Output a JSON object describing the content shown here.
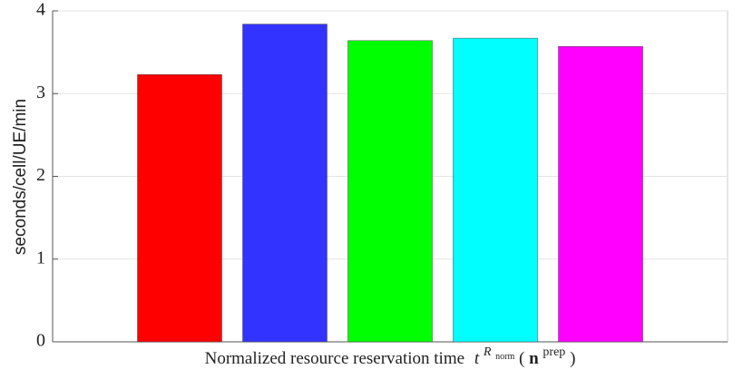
{
  "chart_data": {
    "type": "bar",
    "ylabel": "seconds/cell/UE/min",
    "xlabel_parts": [
      "Normalized resource reservation time",
      "t",
      "R",
      "norm",
      "(",
      "n",
      "prep",
      ")"
    ],
    "categories": [
      null,
      null,
      null,
      null,
      null
    ],
    "values": [
      3.23,
      3.84,
      3.64,
      3.67,
      3.57
    ],
    "colors": [
      "#ff0000",
      "#3333ff",
      "#00ff00",
      "#00ffff",
      "#ff00ff"
    ],
    "ylim": [
      0,
      4
    ],
    "yticks": [
      0,
      1,
      2,
      3,
      4
    ],
    "grid": true
  }
}
